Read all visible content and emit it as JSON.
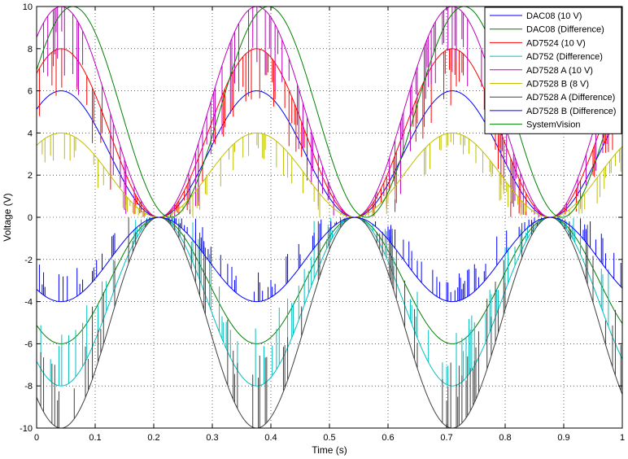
{
  "chart_data": {
    "type": "line",
    "xlabel": "Time (s)",
    "ylabel": "Voltage (V)",
    "xlim": [
      0,
      1
    ],
    "ylim": [
      -10,
      10
    ],
    "grid": true,
    "legend_placement": "top-right",
    "x_ticks": [
      0,
      0.1,
      0.2,
      0.3,
      0.4,
      0.5,
      0.6,
      0.7,
      0.8,
      0.9,
      1
    ],
    "x_tick_labels": [
      "0",
      "0.1",
      "0.2",
      "0.3",
      "0.4",
      "0.5",
      "0.6",
      "0.7",
      "0.8",
      "0.9",
      "1"
    ],
    "y_ticks": [
      -10,
      -8,
      -6,
      -4,
      -2,
      0,
      2,
      4,
      6,
      8,
      10
    ],
    "y_tick_labels": [
      "-10",
      "-8",
      "-6",
      "-4",
      "-2",
      "0",
      "2",
      "4",
      "6",
      "8",
      "10"
    ],
    "signal_period_s": 0.334,
    "series": [
      {
        "name": "DAC08 (10 V)",
        "color": "#0000ff",
        "amplitude_v": 6,
        "phase_s": 0,
        "noisy": false
      },
      {
        "name": "DAC08 (Difference)",
        "color": "#008000",
        "amplitude_v": -6,
        "phase_s": 0,
        "noisy": false
      },
      {
        "name": "AD7524 (10 V)",
        "color": "#ff0000",
        "amplitude_v": 8,
        "phase_s": 0,
        "noisy": true
      },
      {
        "name": "AD752 (Difference)",
        "color": "#00bfbf",
        "amplitude_v": -8,
        "phase_s": 0,
        "noisy": true
      },
      {
        "name": "AD7528 A (10 V)",
        "color": "#bf00bf",
        "amplitude_v": 10,
        "phase_s": 0,
        "noisy": true
      },
      {
        "name": "AD7528 B (8 V)",
        "color": "#bfbf00",
        "amplitude_v": 4,
        "phase_s": 0,
        "noisy": true
      },
      {
        "name": "AD7528 A (Difference)",
        "color": "#404040",
        "amplitude_v": -10,
        "phase_s": 0,
        "noisy": true
      },
      {
        "name": "AD7528 B (Difference)",
        "color": "#0000ff",
        "amplitude_v": -4,
        "phase_s": 0,
        "noisy": true
      },
      {
        "name": "SystemVision",
        "color": "#008000",
        "amplitude_v": 10,
        "phase_s": 0.02,
        "noisy": false
      }
    ]
  }
}
